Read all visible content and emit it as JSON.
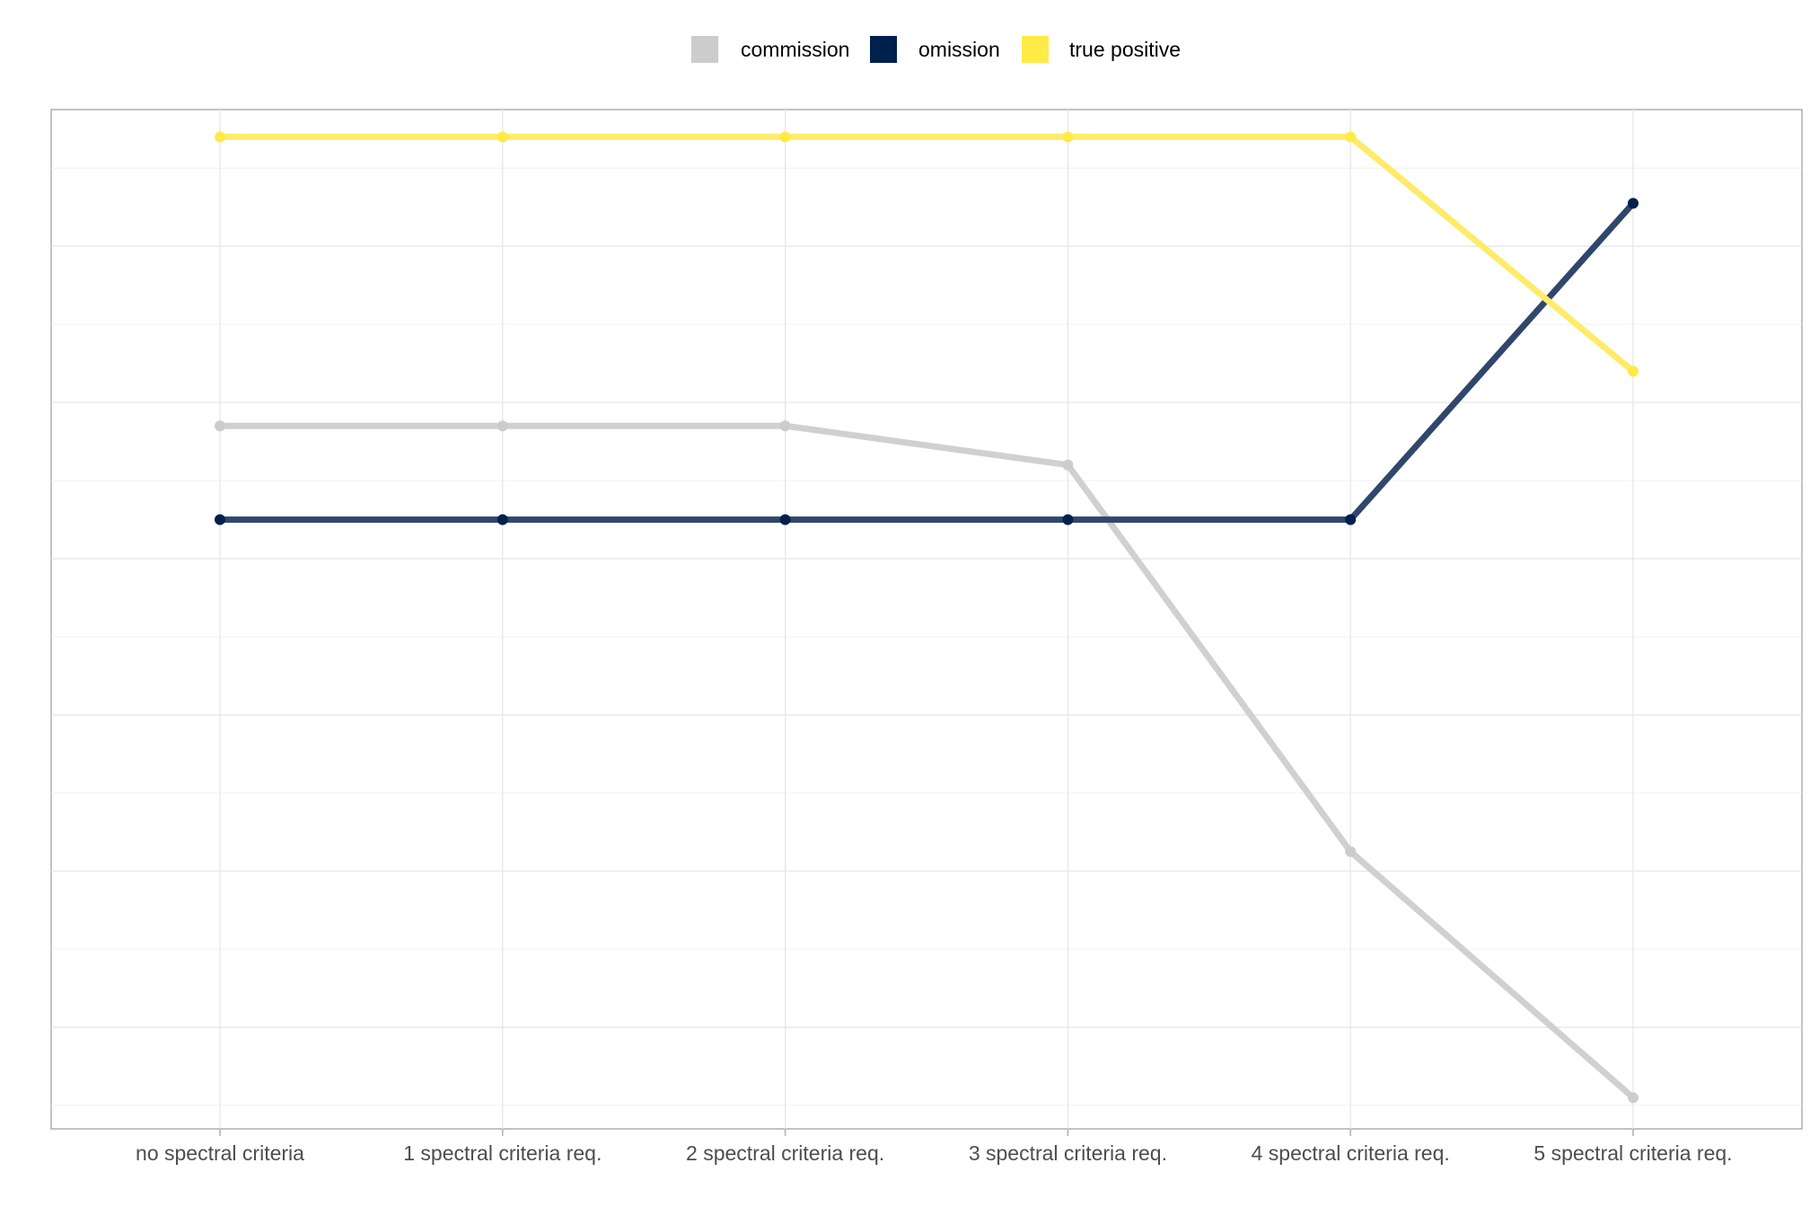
{
  "chart_data": {
    "type": "line",
    "categories": [
      "no spectral criteria",
      "1 spectral criteria req.",
      "2 spectral criteria req.",
      "3 spectral criteria req.",
      "4 spectral criteria req.",
      "5 spectral criteria req."
    ],
    "series": [
      {
        "name": "commission",
        "color": "#cccccc",
        "values": [
          5.7,
          5.7,
          5.7,
          5.2,
          0.25,
          -2.9
        ]
      },
      {
        "name": "omission",
        "color": "#00204d",
        "values": [
          4.5,
          4.5,
          4.5,
          4.5,
          4.5,
          8.55
        ]
      },
      {
        "name": "true positive",
        "color": "#ffea46",
        "values": [
          9.4,
          9.4,
          9.4,
          9.4,
          9.4,
          6.4
        ]
      }
    ],
    "ylim": [
      -3.3,
      9.75
    ],
    "y_gridlines": [
      -2,
      0,
      2,
      4,
      6,
      8
    ],
    "y_minor_gridlines": [
      -3,
      -1,
      1,
      3,
      5,
      7,
      9
    ],
    "y_tick_labels_shown": false,
    "grid": true,
    "legend_position": "top"
  }
}
